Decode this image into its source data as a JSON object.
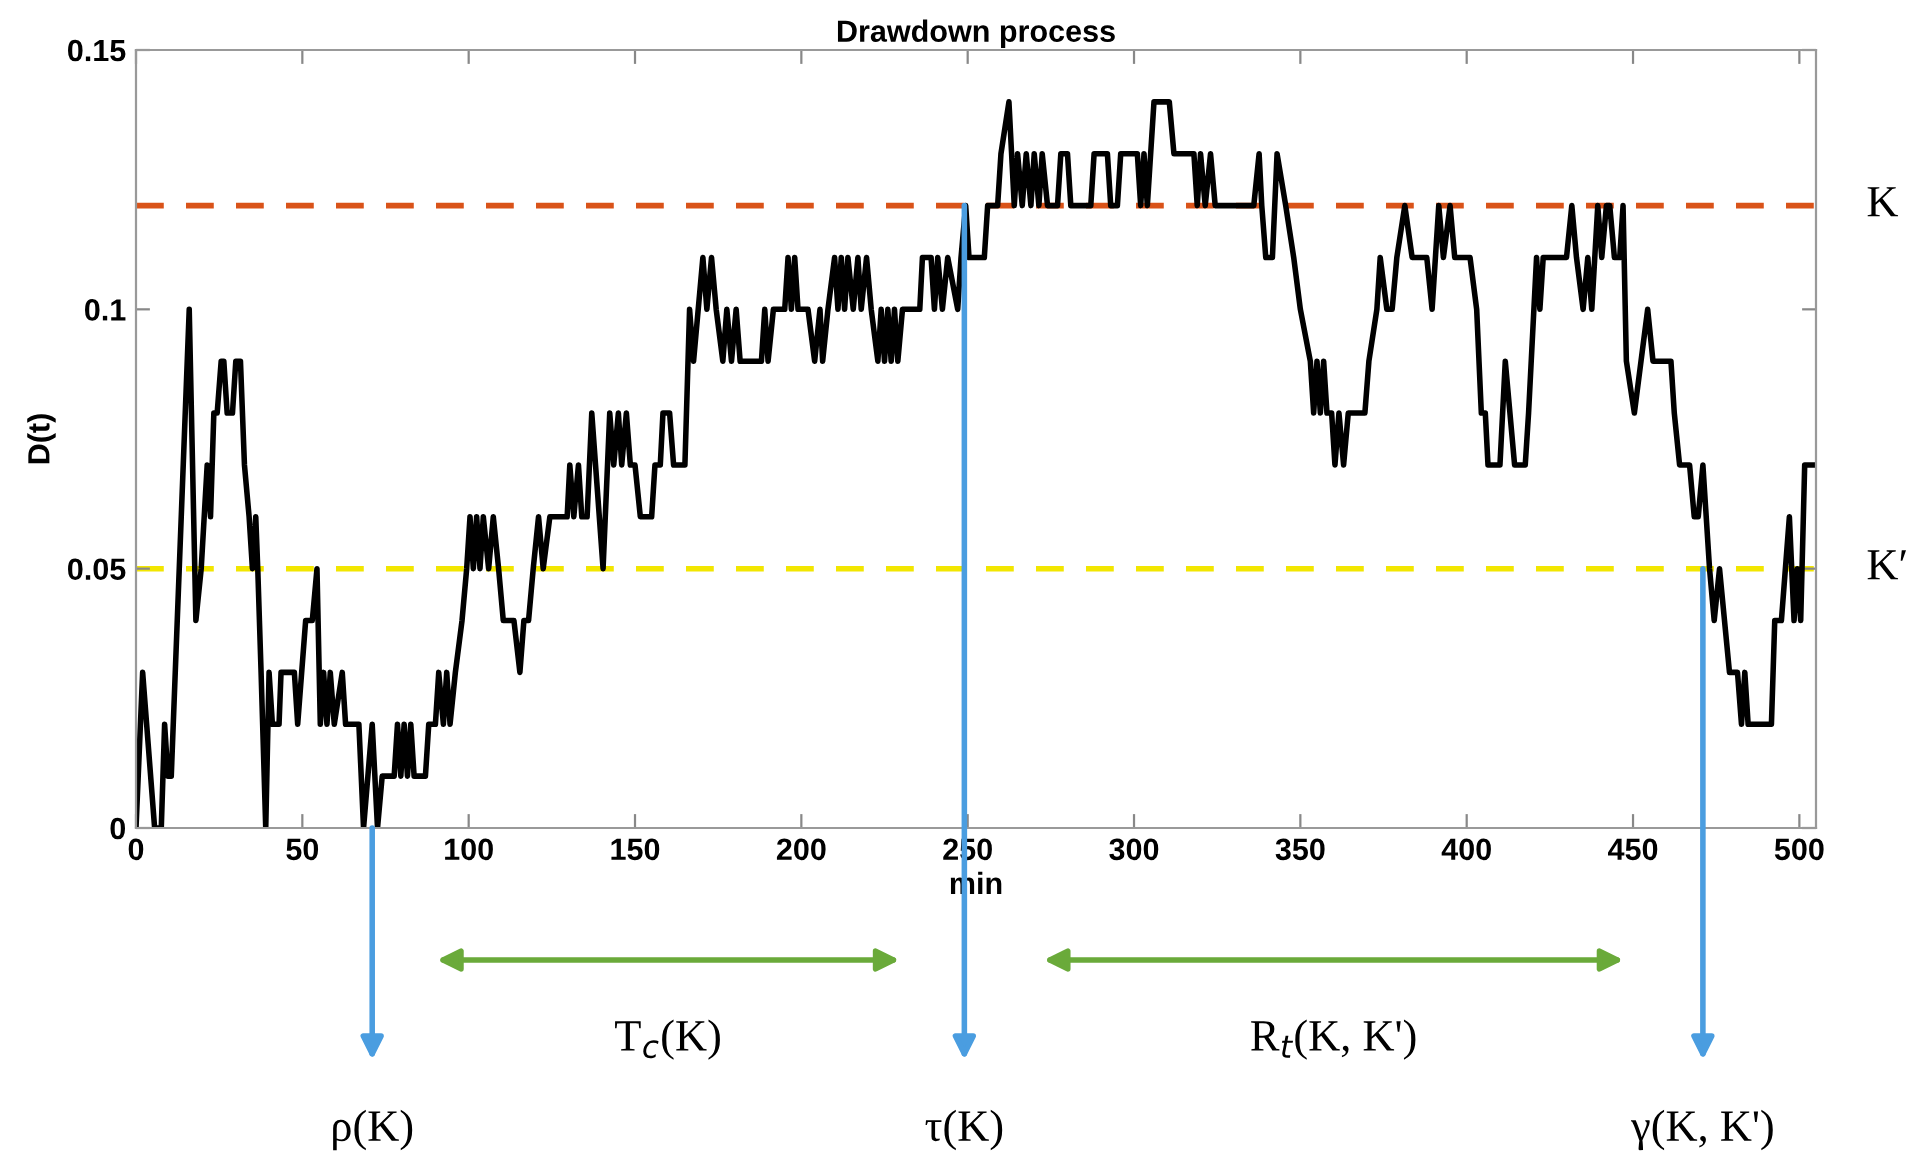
{
  "chart_data": {
    "type": "line",
    "title": "Drawdown process",
    "xlabel": "min",
    "ylabel": "D(t)",
    "xlim": [
      0,
      505
    ],
    "ylim": [
      0,
      0.15
    ],
    "xticks": [
      0,
      50,
      100,
      150,
      200,
      250,
      300,
      350,
      400,
      450,
      500
    ],
    "yticks": [
      0,
      0.05,
      0.1,
      0.15
    ],
    "grid": false,
    "legend": false,
    "marker": "none",
    "line_style": "solid",
    "series": [
      {
        "color": "#000000",
        "x": [
          0,
          2,
          5.6,
          7.6,
          8.6,
          9.6,
          10.6,
          16,
          18,
          19.6,
          21.4,
          22.4,
          23.4,
          24.4,
          25.6,
          26.4,
          27.4,
          29,
          30,
          31.4,
          32.6,
          34,
          35,
          36,
          36.6,
          37.6,
          39,
          40,
          41,
          43,
          43.6,
          47.6,
          48.6,
          51,
          53,
          54.4,
          55.4,
          56.4,
          57.4,
          58.4,
          59.6,
          62,
          63,
          67,
          68.4,
          71,
          72.6,
          74,
          77.6,
          78.6,
          79.6,
          80.6,
          81.6,
          82.6,
          83.6,
          87,
          88,
          90,
          91,
          92.4,
          93.4,
          94.4,
          96,
          98,
          99.4,
          100.4,
          101.4,
          102.4,
          103.4,
          104.4,
          106,
          107.4,
          109,
          110.4,
          113.6,
          115.4,
          116.6,
          118,
          119.4,
          121,
          122.4,
          124.4,
          129.6,
          130.4,
          131.6,
          133,
          134,
          135.6,
          137,
          140.4,
          142.4,
          143.6,
          145,
          146,
          147.4,
          148.6,
          150,
          151.6,
          155,
          156,
          157.6,
          158.4,
          160.4,
          161.6,
          165,
          166.4,
          167.6,
          169,
          170.4,
          171.6,
          173,
          174.4,
          176.4,
          177.6,
          179,
          180.4,
          181.6,
          188,
          189,
          190,
          191.6,
          195,
          196,
          197,
          198,
          199,
          202,
          204,
          205.6,
          206.4,
          208,
          210,
          211,
          212,
          213,
          214,
          215.6,
          217,
          218,
          219.6,
          221,
          223,
          224,
          225,
          226,
          227,
          228,
          229,
          230.4,
          235.6,
          236.4,
          239,
          240,
          241,
          242.4,
          244,
          247,
          248,
          249.4,
          250.4,
          255,
          256,
          259,
          260,
          262.4,
          264,
          265,
          266.4,
          267.6,
          269,
          270,
          271.4,
          272.4,
          274,
          277,
          278,
          280,
          281,
          287,
          288,
          292,
          293,
          295,
          296,
          301,
          302,
          303,
          304,
          306,
          310.6,
          312,
          318,
          319,
          320,
          321.4,
          323,
          324.4,
          336,
          337.6,
          338.4,
          339.6,
          341.6,
          343,
          345.6,
          348,
          350,
          353,
          354,
          355,
          356,
          357,
          358,
          359.4,
          360.4,
          361.6,
          363,
          364.4,
          369.4,
          370.6,
          373,
          374,
          376,
          377.6,
          379,
          381.4,
          383.6,
          385.6,
          388,
          389.6,
          391.6,
          393,
          395,
          396.4,
          401,
          403,
          404.4,
          405.6,
          406.4,
          410,
          411.6,
          414.4,
          417.6,
          418.6,
          421,
          422,
          423,
          430,
          431.6,
          433,
          435,
          436.4,
          437.6,
          439.4,
          440.6,
          442,
          443,
          444.4,
          446,
          447,
          448,
          450.4,
          452.4,
          454.4,
          456,
          461.4,
          462.4,
          464,
          467,
          468.4,
          469.6,
          471,
          473,
          474.4,
          476,
          479,
          481.4,
          482.6,
          483.6,
          484.6,
          491.6,
          492.6,
          494.6,
          497,
          498.4,
          499.4,
          500.4,
          501.6,
          505
        ],
        "values": [
          0,
          0.03,
          0,
          0,
          0.02,
          0.01,
          0.01,
          0.1,
          0.04,
          0.05,
          0.07,
          0.06,
          0.08,
          0.08,
          0.09,
          0.09,
          0.08,
          0.08,
          0.09,
          0.09,
          0.07,
          0.06,
          0.05,
          0.06,
          0.05,
          0.03,
          0,
          0.03,
          0.02,
          0.02,
          0.03,
          0.03,
          0.02,
          0.04,
          0.04,
          0.05,
          0.02,
          0.03,
          0.02,
          0.03,
          0.02,
          0.03,
          0.02,
          0.02,
          0,
          0.02,
          0,
          0.01,
          0.01,
          0.02,
          0.01,
          0.02,
          0.01,
          0.02,
          0.01,
          0.01,
          0.02,
          0.02,
          0.03,
          0.02,
          0.03,
          0.02,
          0.03,
          0.04,
          0.05,
          0.06,
          0.05,
          0.06,
          0.05,
          0.06,
          0.05,
          0.06,
          0.05,
          0.04,
          0.04,
          0.03,
          0.04,
          0.04,
          0.05,
          0.06,
          0.05,
          0.06,
          0.06,
          0.07,
          0.06,
          0.07,
          0.06,
          0.06,
          0.08,
          0.05,
          0.08,
          0.07,
          0.08,
          0.07,
          0.08,
          0.07,
          0.07,
          0.06,
          0.06,
          0.07,
          0.07,
          0.08,
          0.08,
          0.07,
          0.07,
          0.1,
          0.09,
          0.1,
          0.11,
          0.1,
          0.11,
          0.1,
          0.09,
          0.1,
          0.09,
          0.1,
          0.09,
          0.09,
          0.1,
          0.09,
          0.1,
          0.1,
          0.11,
          0.1,
          0.11,
          0.1,
          0.1,
          0.09,
          0.1,
          0.09,
          0.1,
          0.11,
          0.1,
          0.11,
          0.1,
          0.11,
          0.1,
          0.11,
          0.1,
          0.11,
          0.1,
          0.09,
          0.1,
          0.09,
          0.1,
          0.09,
          0.1,
          0.09,
          0.1,
          0.1,
          0.11,
          0.11,
          0.1,
          0.11,
          0.1,
          0.11,
          0.1,
          0.11,
          0.12,
          0.11,
          0.11,
          0.12,
          0.12,
          0.13,
          0.14,
          0.12,
          0.13,
          0.12,
          0.13,
          0.12,
          0.13,
          0.12,
          0.13,
          0.12,
          0.12,
          0.13,
          0.13,
          0.12,
          0.12,
          0.13,
          0.13,
          0.12,
          0.12,
          0.13,
          0.13,
          0.12,
          0.13,
          0.12,
          0.14,
          0.14,
          0.13,
          0.13,
          0.12,
          0.13,
          0.12,
          0.13,
          0.12,
          0.12,
          0.13,
          0.12,
          0.11,
          0.11,
          0.13,
          0.12,
          0.11,
          0.1,
          0.09,
          0.08,
          0.09,
          0.08,
          0.09,
          0.08,
          0.08,
          0.07,
          0.08,
          0.07,
          0.08,
          0.08,
          0.09,
          0.1,
          0.11,
          0.1,
          0.1,
          0.11,
          0.12,
          0.11,
          0.11,
          0.11,
          0.1,
          0.12,
          0.11,
          0.12,
          0.11,
          0.11,
          0.1,
          0.08,
          0.08,
          0.07,
          0.07,
          0.09,
          0.07,
          0.07,
          0.08,
          0.11,
          0.1,
          0.11,
          0.11,
          0.12,
          0.11,
          0.1,
          0.11,
          0.1,
          0.12,
          0.11,
          0.12,
          0.12,
          0.11,
          0.11,
          0.12,
          0.09,
          0.08,
          0.09,
          0.1,
          0.09,
          0.09,
          0.08,
          0.07,
          0.07,
          0.06,
          0.06,
          0.07,
          0.05,
          0.04,
          0.05,
          0.03,
          0.03,
          0.02,
          0.03,
          0.02,
          0.02,
          0.04,
          0.04,
          0.06,
          0.04,
          0.05,
          0.04,
          0.07,
          0.07
        ]
      }
    ],
    "ref_lines": [
      {
        "axis": "y",
        "value": 0.12,
        "label": "K",
        "color": "#d95319",
        "line_style": "dashed"
      },
      {
        "axis": "y",
        "value": 0.05,
        "label": "K′",
        "color": "#f2e600",
        "line_style": "dashed"
      }
    ],
    "annotations": [
      {
        "text": "ρ(K)",
        "x": 71,
        "y": 0
      },
      "T$_{c}$(K)",
      {
        "text": "τ(K)",
        "x": 249,
        "y": 0.12
      },
      "R$_{t}$(K, K')",
      {
        "text": "γ(K, K')",
        "x": 471,
        "y": 0.05
      }
    ]
  }
}
